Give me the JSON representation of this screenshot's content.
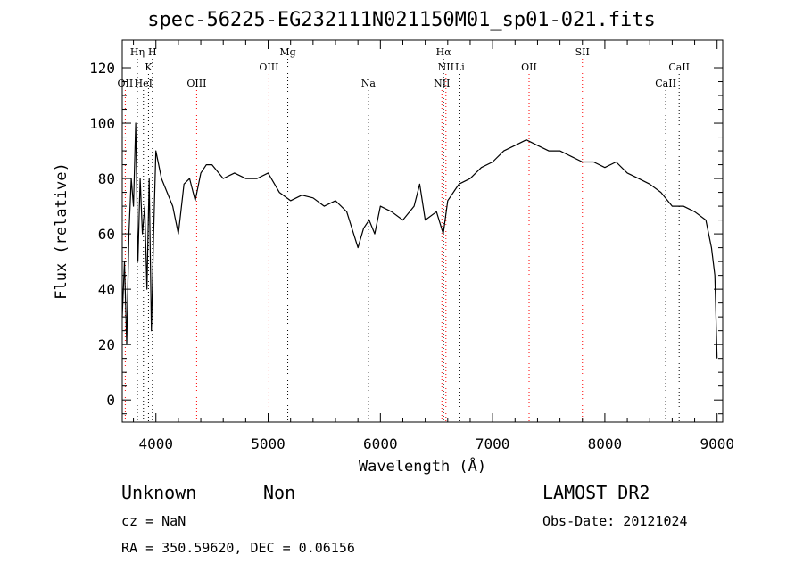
{
  "chart_data": {
    "type": "line",
    "title": "spec-56225-EG232111N021150M01_sp01-021.fits",
    "xlabel": "Wavelength (Å)",
    "ylabel": "Flux (relative)",
    "xlim": [
      3700,
      9050
    ],
    "ylim": [
      -8,
      130
    ],
    "xticks": [
      4000,
      5000,
      6000,
      7000,
      8000,
      9000
    ],
    "yticks": [
      0,
      20,
      40,
      60,
      80,
      100,
      120
    ],
    "grid": false,
    "series": [
      {
        "x": [
          3700,
          3720,
          3740,
          3760,
          3780,
          3800,
          3820,
          3840,
          3860,
          3880,
          3900,
          3920,
          3940,
          3960,
          3980,
          4000,
          4050,
          4100,
          4150,
          4200,
          4250,
          4300,
          4350,
          4400,
          4450,
          4500,
          4600,
          4700,
          4800,
          4900,
          5000,
          5100,
          5200,
          5300,
          5400,
          5500,
          5600,
          5700,
          5800,
          5850,
          5900,
          5950,
          6000,
          6100,
          6200,
          6300,
          6350,
          6400,
          6500,
          6560,
          6600,
          6700,
          6800,
          6900,
          7000,
          7100,
          7200,
          7300,
          7400,
          7500,
          7600,
          7700,
          7800,
          7900,
          8000,
          8100,
          8200,
          8300,
          8400,
          8500,
          8600,
          8700,
          8800,
          8900,
          8950,
          8980,
          9000
        ],
        "y": [
          30,
          50,
          20,
          60,
          80,
          70,
          100,
          50,
          80,
          60,
          70,
          40,
          80,
          25,
          60,
          90,
          80,
          75,
          70,
          60,
          78,
          80,
          72,
          82,
          85,
          85,
          80,
          82,
          80,
          80,
          82,
          75,
          72,
          74,
          73,
          70,
          72,
          68,
          55,
          62,
          65,
          60,
          70,
          68,
          65,
          70,
          78,
          65,
          68,
          60,
          72,
          78,
          80,
          84,
          86,
          90,
          92,
          94,
          92,
          90,
          90,
          88,
          86,
          86,
          84,
          86,
          82,
          80,
          78,
          75,
          70,
          70,
          68,
          65,
          55,
          45,
          15
        ]
      }
    ],
    "lines": [
      {
        "label": "OII",
        "x": 3727,
        "row": 3,
        "color": "#ff0000"
      },
      {
        "label": "Hη",
        "x": 3835,
        "row": 1,
        "color": "#000000"
      },
      {
        "label": "HeI",
        "x": 3889,
        "row": 3,
        "color": "#000000"
      },
      {
        "label": "K",
        "x": 3934,
        "row": 2,
        "color": "#000000"
      },
      {
        "label": "H",
        "x": 3969,
        "row": 1,
        "color": "#000000"
      },
      {
        "label": "OIII",
        "x": 4363,
        "row": 3,
        "color": "#ff0000"
      },
      {
        "label": "OIII",
        "x": 5007,
        "row": 2,
        "color": "#ff0000"
      },
      {
        "label": "Mg",
        "x": 5175,
        "row": 1,
        "color": "#000000"
      },
      {
        "label": "Na",
        "x": 5893,
        "row": 3,
        "color": "#000000"
      },
      {
        "label": "Hα",
        "x": 6563,
        "row": 1,
        "color": "#000000"
      },
      {
        "label": "NII",
        "x": 6548,
        "row": 3,
        "color": "#ff0000"
      },
      {
        "label": "NII",
        "x": 6584,
        "row": 2,
        "color": "#ff0000"
      },
      {
        "label": "Li",
        "x": 6708,
        "row": 2,
        "color": "#000000"
      },
      {
        "label": "OII",
        "x": 7325,
        "row": 2,
        "color": "#ff0000"
      },
      {
        "label": "SII",
        "x": 7800,
        "row": 1,
        "color": "#ff0000"
      },
      {
        "label": "CaII",
        "x": 8542,
        "row": 3,
        "color": "#000000"
      },
      {
        "label": "CaII",
        "x": 8662,
        "row": 2,
        "color": "#000000"
      }
    ]
  },
  "info": {
    "object_class": "Unknown",
    "subclass": "Non",
    "survey": "LAMOST DR2",
    "cz": "cz = NaN",
    "obs_date": "Obs-Date: 20121024",
    "radec": "RA = 350.59620, DEC =   0.06156"
  }
}
